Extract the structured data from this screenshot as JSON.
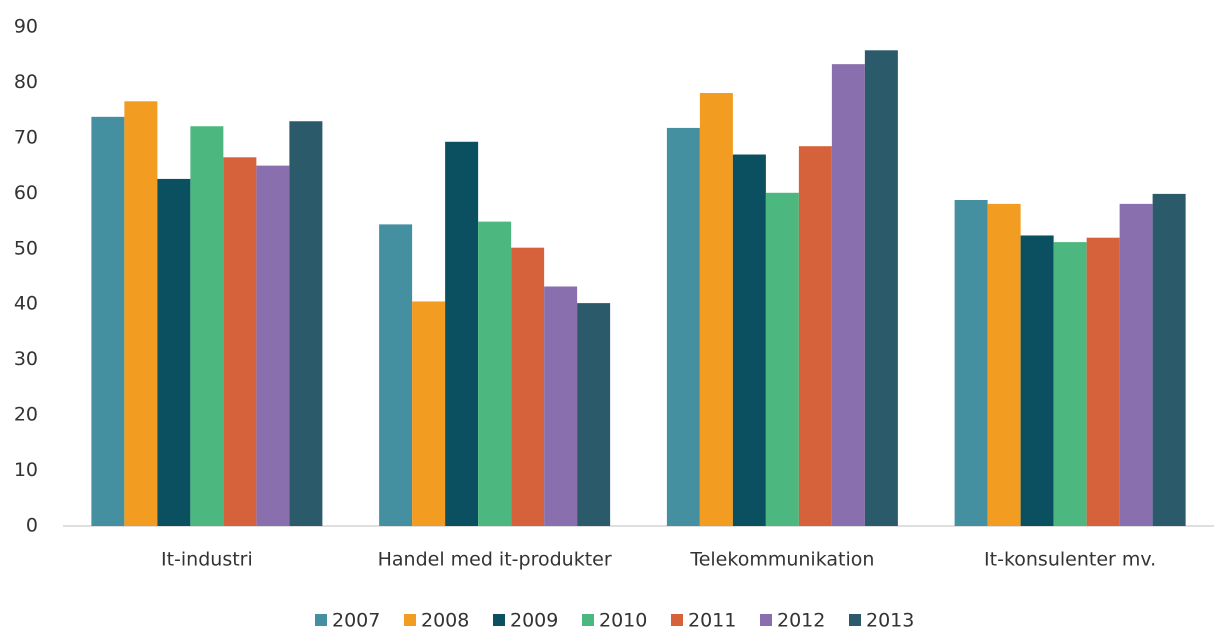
{
  "chart_data": {
    "type": "bar",
    "categories": [
      "It-industri",
      "Handel med it-produkter",
      "Telekommunikation",
      "It-konsulenter mv."
    ],
    "series": [
      {
        "name": "2007",
        "color": "#4590a0",
        "values": [
          73.8,
          54.4,
          71.8,
          58.8
        ]
      },
      {
        "name": "2008",
        "color": "#f39c22",
        "values": [
          76.6,
          40.5,
          78.1,
          58.1
        ]
      },
      {
        "name": "2009",
        "color": "#0b5060",
        "values": [
          62.6,
          69.3,
          67,
          52.4
        ]
      },
      {
        "name": "2010",
        "color": "#4cb880",
        "values": [
          72.1,
          54.9,
          60.1,
          51.2
        ]
      },
      {
        "name": "2011",
        "color": "#d5623a",
        "values": [
          66.5,
          50.2,
          68.5,
          52
        ]
      },
      {
        "name": "2012",
        "color": "#8a6fae",
        "values": [
          65,
          43.2,
          83.3,
          58.1
        ]
      },
      {
        "name": "2013",
        "color": "#2b5b6a",
        "values": [
          73,
          40.2,
          85.8,
          59.9
        ]
      }
    ],
    "ylim": [
      0,
      90
    ],
    "yticks": [
      0,
      10,
      20,
      30,
      40,
      50,
      60,
      70,
      80,
      90
    ],
    "legend": "bottom"
  }
}
